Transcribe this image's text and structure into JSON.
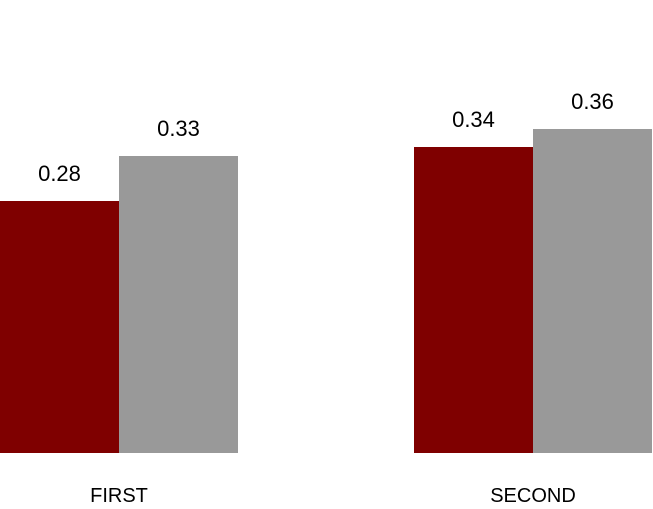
{
  "chart_data": {
    "type": "bar",
    "categories": [
      "FIRST",
      "SECOND"
    ],
    "series": [
      {
        "values": [
          0.28,
          0.34
        ],
        "color": "#7f0000"
      },
      {
        "values": [
          0.33,
          0.36
        ],
        "color": "#999999"
      }
    ],
    "data_labels": [
      [
        "0.28",
        "0.34"
      ],
      [
        "0.33",
        "0.36"
      ]
    ],
    "title": "",
    "xlabel": "",
    "ylabel": "",
    "ylim": [
      0,
      0.4
    ],
    "grid": false,
    "legend": "none"
  }
}
